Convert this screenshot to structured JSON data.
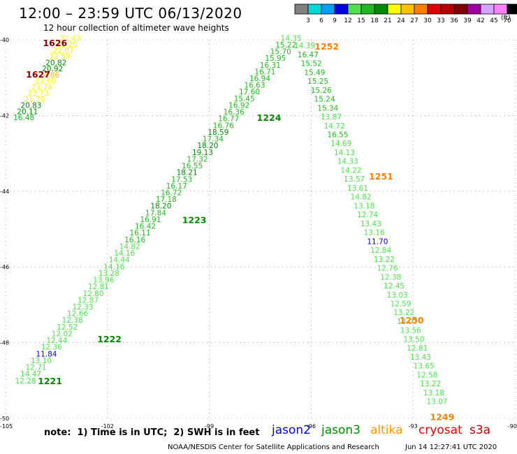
{
  "header": {
    "title": "12:00 – 23:59 UTC 06/13/2020",
    "subtitle": "12 hour collection of altimeter wave heights"
  },
  "legend": {
    "unit": "(ft)",
    "bins": [
      {
        "label": "3",
        "color": "#808080"
      },
      {
        "label": "6",
        "color": "#00d8d8"
      },
      {
        "label": "9",
        "color": "#00a0ff"
      },
      {
        "label": "12",
        "color": "#0000e0"
      },
      {
        "label": "15",
        "color": "#50e050"
      },
      {
        "label": "18",
        "color": "#20b820"
      },
      {
        "label": "21",
        "color": "#008800"
      },
      {
        "label": "24",
        "color": "#ffff00"
      },
      {
        "label": "27",
        "color": "#ffc000"
      },
      {
        "label": "30",
        "color": "#ff8000"
      },
      {
        "label": "33",
        "color": "#e00000"
      },
      {
        "label": "36",
        "color": "#b80000"
      },
      {
        "label": "39",
        "color": "#800000"
      },
      {
        "label": "42",
        "color": "#a000a0"
      },
      {
        "label": "45",
        "color": "#d8a0ff"
      },
      {
        "label": "70",
        "color": "#ff80ff"
      },
      {
        "label": "",
        "color": "#000000"
      }
    ]
  },
  "map": {
    "lon_range": [
      -105,
      -90
    ],
    "lat_range": [
      -50,
      -40
    ],
    "lon_ticks": [
      "-105",
      "-102",
      "-99",
      "-96",
      "-93",
      "-90"
    ],
    "lat_ticks": [
      "-40",
      "-42",
      "-44",
      "-46",
      "-48",
      "-50"
    ],
    "grid_color": "#7a7a7a",
    "pass_labels": [
      {
        "text": "1626",
        "lon": -103.9,
        "lat": -40.07,
        "color": "#800000"
      },
      {
        "text": "1627",
        "lon": -104.4,
        "lat": -40.9,
        "color": "#800000"
      },
      {
        "text": "1252",
        "lon": -95.9,
        "lat": -40.17,
        "color": "#ff8000"
      },
      {
        "text": "1224",
        "lon": -97.6,
        "lat": -42.05,
        "color": "#008800"
      },
      {
        "text": "1251",
        "lon": -94.3,
        "lat": -43.6,
        "color": "#ff8000"
      },
      {
        "text": "1223",
        "lon": -99.8,
        "lat": -44.75,
        "color": "#008800"
      },
      {
        "text": "1250",
        "lon": -93.4,
        "lat": -47.4,
        "color": "#ff8000"
      },
      {
        "text": "1222",
        "lon": -102.3,
        "lat": -47.9,
        "color": "#008800"
      },
      {
        "text": "1221",
        "lon": -104.05,
        "lat": -49.0,
        "color": "#008800"
      },
      {
        "text": "1249",
        "lon": -92.5,
        "lat": -49.95,
        "color": "#ff8000"
      }
    ],
    "tracks": [
      {
        "name": "1627",
        "start": {
          "lon": -103.4,
          "lat": -39.95
        },
        "end": {
          "lon": -104.77,
          "lat": -42.05
        },
        "values": [
          21.43,
          22.2,
          22.07,
          22.59,
          20.82,
          20.92,
          24.86,
          23.6,
          23.78,
          23.73,
          21.79,
          20.83,
          20.11,
          16.48
        ]
      },
      {
        "name": "1224",
        "start": {
          "lon": -96.9,
          "lat": -39.95
        },
        "end": {
          "lon": -104.72,
          "lat": -49.0
        },
        "values": [
          14.35,
          15.22,
          15.7,
          15.95,
          16.31,
          16.71,
          16.94,
          16.63,
          17.6,
          15.45,
          16.92,
          16.36,
          16.77,
          16.76,
          18.59,
          17.34,
          18.2,
          19.13,
          17.32,
          16.55,
          18.21,
          17.53,
          16.17,
          16.72,
          17.18,
          18.2,
          17.84,
          16.91,
          16.42,
          16.11,
          16.16,
          14.82,
          14.16,
          14.44,
          14.16,
          13.28,
          13.96,
          12.81,
          12.8,
          12.87,
          12.33,
          12.66,
          12.38,
          12.52,
          12.02,
          12.44,
          12.36,
          11.84,
          13.1,
          12.71,
          14.47,
          12.28
        ]
      },
      {
        "name": "1252",
        "start": {
          "lon": -96.5,
          "lat": -40.15
        },
        "end": {
          "lon": -92.6,
          "lat": -49.55
        },
        "values": [
          14.39,
          16.47,
          15.52,
          15.49,
          15.25,
          15.26,
          15.24,
          15.34,
          13.87,
          14.72,
          16.55,
          14.69,
          14.13,
          14.33,
          14.22,
          13.57,
          13.61,
          14.82,
          13.18,
          12.74,
          13.43,
          13.16,
          11.7,
          12.84,
          13.22,
          12.76,
          12.38,
          12.45,
          13.03,
          12.59,
          13.22,
          13.07,
          13.56,
          13.5,
          12.81,
          13.43,
          13.65,
          12.58,
          13.22,
          13.18,
          13.07
        ]
      }
    ]
  },
  "note": "note:  1) Time is in UTC;  2) SWH is in feet",
  "satellites": [
    {
      "name": "jason2",
      "color": "#0000e0"
    },
    {
      "name": "jason3",
      "color": "#008800"
    },
    {
      "name": "altika",
      "color": "#ff9900"
    },
    {
      "name": "cryosat",
      "color": "#e00000"
    },
    {
      "name": "s3a",
      "color": "#b80000"
    }
  ],
  "footer": {
    "credit": "NOAA/NESDIS Center for Satellite Applications and Research",
    "timestamp": "Jun 14 12:27:41 UTC 2020"
  }
}
